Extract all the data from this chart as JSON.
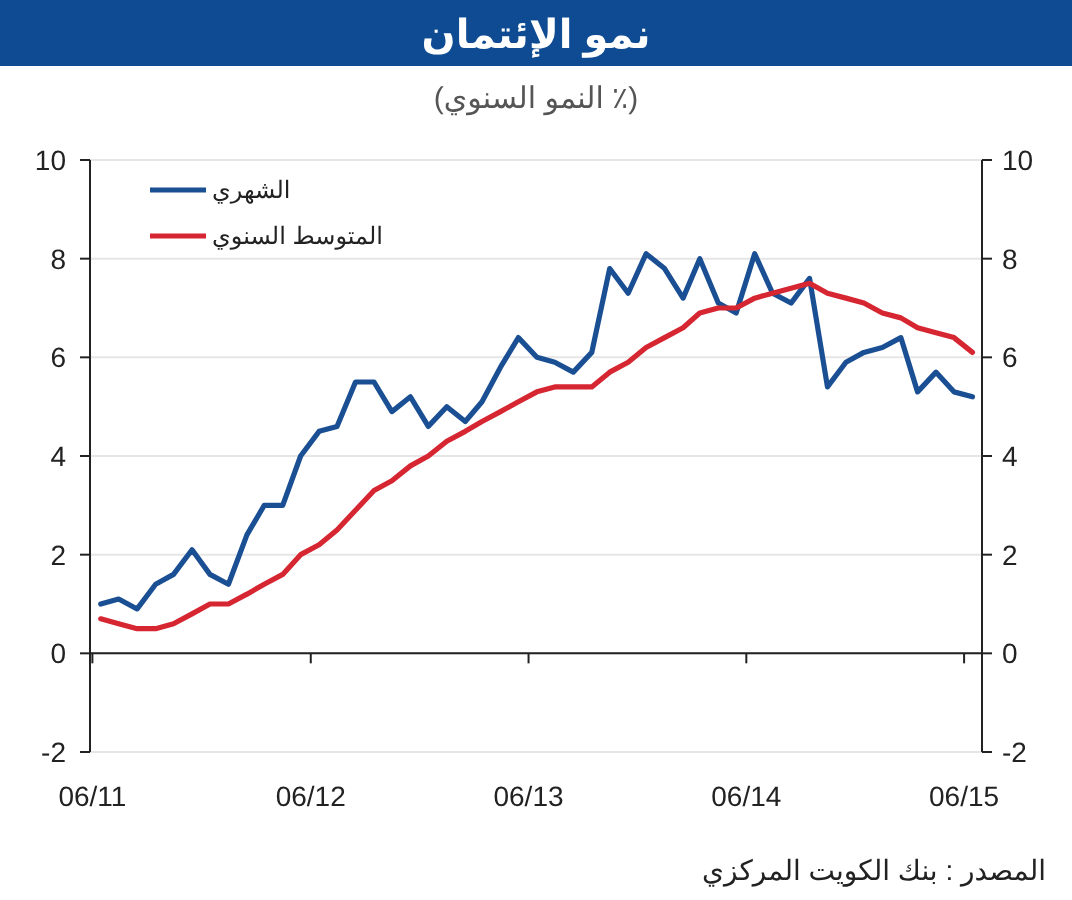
{
  "chart_data": {
    "type": "line",
    "title": "نمو الإئتمان",
    "subtitle": "(٪ النمو السنوي)",
    "x": [
      "2011-06-15",
      "2011-07-15",
      "2011-08-15",
      "2011-09-15",
      "2011-10-15",
      "2011-11-15",
      "2011-12-15",
      "2012-01-15",
      "2012-02-15",
      "2012-03-15",
      "2012-04-15",
      "2012-05-15",
      "2012-06-15",
      "2012-07-15",
      "2012-08-15",
      "2012-09-15",
      "2012-10-15",
      "2012-11-15",
      "2012-12-15",
      "2013-01-15",
      "2013-02-15",
      "2013-03-15",
      "2013-04-15",
      "2013-05-15",
      "2013-06-15",
      "2013-07-15",
      "2013-08-15",
      "2013-09-15",
      "2013-10-15",
      "2013-11-15",
      "2013-12-15",
      "2014-01-15",
      "2014-02-15",
      "2014-03-15",
      "2014-04-15",
      "2014-05-15",
      "2014-06-15",
      "2014-07-15",
      "2014-08-15",
      "2014-09-15",
      "2014-10-15",
      "2014-11-15",
      "2014-12-15",
      "2015-01-15",
      "2015-02-15",
      "2015-03-15",
      "2015-04-15",
      "2015-05-15",
      "2015-06-15"
    ],
    "series": [
      {
        "name": "الشهري",
        "color": "#1b4f93",
        "values": [
          1.0,
          1.1,
          0.9,
          1.4,
          1.6,
          2.1,
          1.6,
          1.4,
          2.4,
          3.0,
          3.0,
          4.0,
          4.5,
          4.6,
          5.5,
          5.5,
          4.9,
          5.2,
          4.6,
          5.0,
          4.7,
          5.1,
          5.8,
          6.4,
          6.0,
          5.9,
          5.7,
          6.1,
          7.8,
          7.3,
          8.1,
          7.8,
          7.2,
          8.0,
          7.1,
          6.9,
          8.1,
          7.3,
          7.1,
          7.6,
          5.4,
          5.9,
          6.1,
          6.2,
          6.4,
          5.3,
          5.7,
          5.3,
          5.2
        ]
      },
      {
        "name": "المتوسط السنوي",
        "color": "#d62631",
        "values": [
          0.7,
          0.6,
          0.5,
          0.5,
          0.6,
          0.8,
          1.0,
          1.0,
          1.2,
          1.4,
          1.6,
          2.0,
          2.2,
          2.5,
          2.9,
          3.3,
          3.5,
          3.8,
          4.0,
          4.3,
          4.5,
          4.7,
          4.9,
          5.1,
          5.3,
          5.4,
          5.4,
          5.4,
          5.7,
          5.9,
          6.2,
          6.4,
          6.6,
          6.9,
          7.0,
          7.0,
          7.2,
          7.3,
          7.4,
          7.5,
          7.3,
          7.2,
          7.1,
          6.9,
          6.8,
          6.6,
          6.5,
          6.4,
          6.1
        ]
      }
    ],
    "xlim": [
      "2011-05-28",
      "2015-07-01"
    ],
    "xticks": [
      {
        "value": "2011-06-01",
        "label": "06/11"
      },
      {
        "value": "2012-06-01",
        "label": "06/12"
      },
      {
        "value": "2013-06-01",
        "label": "06/13"
      },
      {
        "value": "2014-06-01",
        "label": "06/14"
      },
      {
        "value": "2015-06-01",
        "label": "06/15"
      }
    ],
    "ylim": [
      -2,
      10
    ],
    "yticks": [
      -2,
      0,
      2,
      4,
      6,
      8,
      10
    ],
    "y2lim": [
      -2,
      10
    ],
    "y2ticks": [
      -2,
      0,
      2,
      4,
      6,
      8,
      10
    ],
    "grid": "y",
    "legend": "top left",
    "marker": "none",
    "line_style": "solid",
    "annotations": [
      "المصدر : بنك الكويت المركزي"
    ]
  }
}
